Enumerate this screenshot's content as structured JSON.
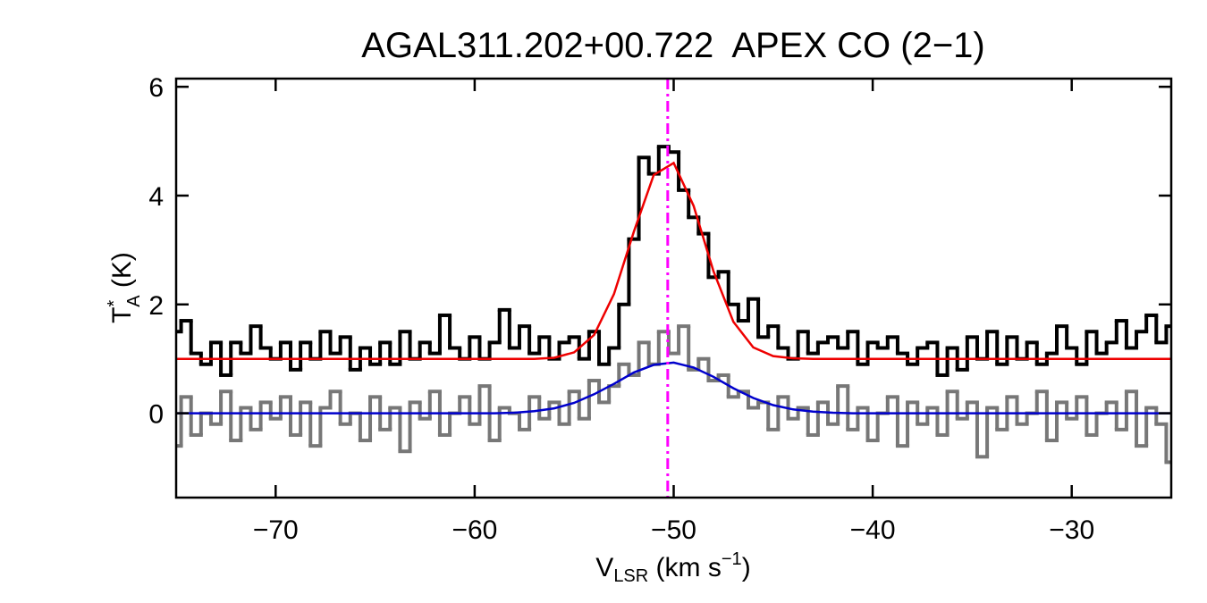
{
  "chart_data": {
    "type": "line",
    "title": "AGAL311.202+00.722  APEX CO (2−1)",
    "xlabel": [
      "V",
      "LSR",
      " (km s",
      "−1",
      ")"
    ],
    "ylabel": [
      "T",
      "*",
      "A",
      " (K)"
    ],
    "xlim": [
      -75,
      -25
    ],
    "ylim": [
      -1.55,
      6.15
    ],
    "xticks": [
      {
        "value": -70,
        "label": "−70"
      },
      {
        "value": -60,
        "label": "−60"
      },
      {
        "value": -50,
        "label": "−50"
      },
      {
        "value": -40,
        "label": "−40"
      },
      {
        "value": -30,
        "label": "−30"
      }
    ],
    "yticks": [
      0,
      2,
      4,
      6
    ],
    "vline": {
      "x": -50.3,
      "color": "#ff00ff"
    },
    "series": [
      {
        "style": "step",
        "color": "#000000",
        "x": [
          -75,
          -74.5,
          -74,
          -73.5,
          -73,
          -72.5,
          -72,
          -71.5,
          -71,
          -70.5,
          -70,
          -69.5,
          -69,
          -68.5,
          -68,
          -67.5,
          -67,
          -66.5,
          -66,
          -65.5,
          -65,
          -64.5,
          -64,
          -63.5,
          -63,
          -62.5,
          -62,
          -61.5,
          -61,
          -60.5,
          -60,
          -59.5,
          -59,
          -58.5,
          -58,
          -57.5,
          -57,
          -56.5,
          -56,
          -55.5,
          -55,
          -54.5,
          -54,
          -53.5,
          -53,
          -52.5,
          -52,
          -51.5,
          -51,
          -50.5,
          -50,
          -49.5,
          -49,
          -48.5,
          -48,
          -47.5,
          -47,
          -46.5,
          -46,
          -45.5,
          -45,
          -44.5,
          -44,
          -43.5,
          -43,
          -42.5,
          -42,
          -41.5,
          -41,
          -40.5,
          -40,
          -39.5,
          -39,
          -38.5,
          -38,
          -37.5,
          -37,
          -36.5,
          -36,
          -35.5,
          -35,
          -34.5,
          -34,
          -33.5,
          -33,
          -32.5,
          -32,
          -31.5,
          -31,
          -30.5,
          -30,
          -29.5,
          -29,
          -28.5,
          -28,
          -27.5,
          -27,
          -26.5,
          -26,
          -25.5,
          -25
        ],
        "values": [
          1.5,
          1.7,
          1.1,
          0.9,
          1.3,
          0.7,
          1.3,
          1.1,
          1.6,
          1.2,
          1.0,
          1.3,
          0.8,
          1.3,
          1.0,
          1.5,
          1.1,
          1.4,
          0.8,
          1.2,
          0.9,
          1.3,
          0.9,
          1.5,
          1.0,
          1.3,
          1.1,
          1.8,
          1.2,
          1.0,
          1.4,
          1.0,
          1.3,
          1.9,
          1.2,
          1.6,
          1.1,
          1.4,
          1.0,
          1.3,
          1.4,
          1.0,
          1.5,
          0.9,
          1.2,
          2.0,
          3.2,
          4.7,
          4.4,
          4.9,
          4.8,
          4.1,
          3.6,
          3.3,
          2.5,
          2.6,
          2.0,
          1.7,
          2.1,
          1.4,
          1.6,
          1.2,
          1.0,
          1.5,
          1.1,
          1.3,
          1.4,
          1.2,
          1.5,
          0.9,
          1.3,
          1.2,
          1.4,
          1.1,
          0.9,
          1.2,
          1.3,
          0.7,
          1.2,
          0.8,
          1.4,
          1.0,
          1.5,
          0.9,
          1.4,
          1.0,
          1.3,
          0.9,
          1.1,
          1.6,
          1.2,
          0.9,
          1.5,
          1.1,
          1.3,
          1.7,
          1.2,
          1.5,
          1.8,
          1.3,
          1.6
        ]
      },
      {
        "style": "step",
        "color": "#777777",
        "x": [
          -75,
          -74.5,
          -74,
          -73.5,
          -73,
          -72.5,
          -72,
          -71.5,
          -71,
          -70.5,
          -70,
          -69.5,
          -69,
          -68.5,
          -68,
          -67.5,
          -67,
          -66.5,
          -66,
          -65.5,
          -65,
          -64.5,
          -64,
          -63.5,
          -63,
          -62.5,
          -62,
          -61.5,
          -61,
          -60.5,
          -60,
          -59.5,
          -59,
          -58.5,
          -58,
          -57.5,
          -57,
          -56.5,
          -56,
          -55.5,
          -55,
          -54.5,
          -54,
          -53.5,
          -53,
          -52.5,
          -52,
          -51.5,
          -51,
          -50.5,
          -50,
          -49.5,
          -49,
          -48.5,
          -48,
          -47.5,
          -47,
          -46.5,
          -46,
          -45.5,
          -45,
          -44.5,
          -44,
          -43.5,
          -43,
          -42.5,
          -42,
          -41.5,
          -41,
          -40.5,
          -40,
          -39.5,
          -39,
          -38.5,
          -38,
          -37.5,
          -37,
          -36.5,
          -36,
          -35.5,
          -35,
          -34.5,
          -34,
          -33.5,
          -33,
          -32.5,
          -32,
          -31.5,
          -31,
          -30.5,
          -30,
          -29.5,
          -29,
          -28.5,
          -28,
          -27.5,
          -27,
          -26.5,
          -26,
          -25.5,
          -25
        ],
        "values": [
          -0.6,
          0.3,
          -0.4,
          0.0,
          -0.2,
          0.4,
          -0.5,
          0.1,
          -0.3,
          0.2,
          -0.1,
          0.3,
          -0.4,
          0.2,
          -0.6,
          0.1,
          0.4,
          -0.2,
          0.0,
          -0.5,
          0.3,
          -0.3,
          0.1,
          -0.7,
          0.2,
          -0.1,
          0.4,
          -0.4,
          0.0,
          0.3,
          -0.2,
          0.5,
          -0.5,
          0.1,
          0.0,
          -0.3,
          0.3,
          -0.1,
          0.2,
          -0.2,
          0.4,
          -0.1,
          0.6,
          0.2,
          0.5,
          0.9,
          0.7,
          1.3,
          0.9,
          1.5,
          1.1,
          1.6,
          0.8,
          1.0,
          0.6,
          0.7,
          0.3,
          0.4,
          0.1,
          0.2,
          -0.3,
          0.3,
          -0.1,
          0.1,
          -0.4,
          0.2,
          -0.2,
          0.5,
          -0.3,
          0.1,
          -0.5,
          0.0,
          0.3,
          -0.6,
          0.2,
          -0.2,
          0.1,
          -0.4,
          0.4,
          -0.1,
          0.2,
          -0.8,
          0.1,
          -0.3,
          0.3,
          -0.2,
          0.0,
          0.4,
          -0.5,
          0.2,
          -0.1,
          0.3,
          -0.4,
          0.0,
          0.2,
          -0.3,
          0.4,
          -0.6,
          0.1,
          -0.2,
          -0.9
        ]
      },
      {
        "style": "smooth",
        "color": "#ee0000",
        "x": [
          -75,
          -74,
          -73,
          -72,
          -71,
          -70,
          -69,
          -68,
          -67,
          -66,
          -65,
          -64,
          -63,
          -62,
          -61,
          -60,
          -59,
          -58,
          -57,
          -56,
          -55,
          -54,
          -53,
          -52,
          -51,
          -50,
          -49,
          -48,
          -47,
          -46,
          -45,
          -44,
          -43,
          -42,
          -41,
          -40,
          -39,
          -38,
          -37,
          -36,
          -35,
          -34,
          -33,
          -32,
          -31,
          -30,
          -29,
          -28,
          -27,
          -26,
          -25
        ],
        "values": [
          1,
          1,
          1,
          1,
          1,
          1,
          1,
          1,
          1,
          1,
          1,
          1,
          1,
          1,
          1,
          1,
          1,
          1,
          1,
          1.02,
          1.12,
          1.44,
          2.19,
          3.34,
          4.38,
          4.6,
          3.81,
          2.61,
          1.68,
          1.21,
          1.05,
          1.01,
          1,
          1,
          1,
          1,
          1,
          1,
          1,
          1,
          1,
          1,
          1,
          1,
          1,
          1,
          1,
          1,
          1,
          1,
          1
        ]
      },
      {
        "style": "smooth",
        "color": "#0000cc",
        "x": [
          -75,
          -74,
          -73,
          -72,
          -71,
          -70,
          -69,
          -68,
          -67,
          -66,
          -65,
          -64,
          -63,
          -62,
          -61,
          -60,
          -59,
          -58,
          -57,
          -56,
          -55,
          -54,
          -53,
          -52,
          -51,
          -50,
          -49,
          -48,
          -47,
          -46,
          -45,
          -44,
          -43,
          -42,
          -41,
          -40,
          -39,
          -38,
          -37,
          -36,
          -35,
          -34,
          -33,
          -32,
          -31,
          -30,
          -29,
          -28,
          -27,
          -26,
          -25
        ],
        "values": [
          0,
          0,
          0,
          0,
          0,
          0,
          0,
          0,
          0,
          0,
          0,
          0,
          0,
          0,
          0,
          0,
          0,
          0.01,
          0.04,
          0.09,
          0.19,
          0.35,
          0.54,
          0.75,
          0.89,
          0.93,
          0.84,
          0.67,
          0.46,
          0.28,
          0.15,
          0.07,
          0.03,
          0.01,
          0,
          0,
          0,
          0,
          0,
          0,
          0,
          0,
          0,
          0,
          0,
          0,
          0,
          0,
          0,
          0,
          0
        ]
      }
    ]
  }
}
